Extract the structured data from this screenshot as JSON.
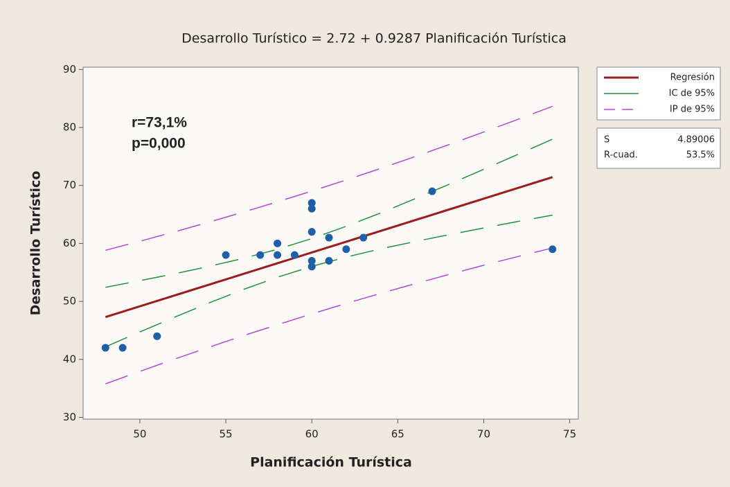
{
  "chart_data": {
    "type": "scatter",
    "title": "Desarrollo Turístico = 2.72 + 0.9287 Planificación Turística",
    "xlabel": "Planificación Turística",
    "ylabel": "Desarrollo Turístico",
    "annotations": [
      "r=73,1%",
      "p=0,000"
    ],
    "xlim": [
      46.7,
      75.5
    ],
    "ylim": [
      29.7,
      90.4
    ],
    "xticks": [
      50,
      55,
      60,
      65,
      70,
      75
    ],
    "yticks": [
      30,
      40,
      50,
      60,
      70,
      80,
      90
    ],
    "grid": false,
    "legend": "right",
    "points": {
      "color": "#1f5fa8",
      "x": [
        48,
        49,
        51,
        55,
        57,
        58,
        58,
        59,
        60,
        60,
        60,
        60,
        60,
        61,
        61,
        62,
        63,
        67,
        74
      ],
      "values": [
        42,
        42,
        44,
        58,
        58,
        60,
        58,
        58,
        67,
        66,
        62,
        57,
        56,
        61,
        57,
        59,
        61,
        69,
        59
      ]
    },
    "series": [
      {
        "name": "Regresión",
        "color": "#9e1b1b",
        "linestyle": "solid",
        "x": [
          48,
          74
        ],
        "values": [
          47.3,
          71.44
        ]
      },
      {
        "name": "IC de 95%",
        "color": "#23903a",
        "linestyle": "dashed",
        "x": [
          48,
          50,
          52,
          54,
          56,
          58,
          60,
          62,
          64,
          66,
          68,
          70,
          72,
          74
        ],
        "upper": [
          52.43,
          53.58,
          54.76,
          56.03,
          57.42,
          58.99,
          60.84,
          62.95,
          65.26,
          67.7,
          70.22,
          72.79,
          75.38,
          77.99
        ],
        "lower": [
          42.17,
          44.74,
          47.26,
          49.71,
          52.04,
          54.17,
          56.04,
          57.65,
          59.06,
          60.32,
          61.52,
          62.67,
          63.8,
          64.89
        ]
      },
      {
        "name": "IP de 95%",
        "color": "#b447d6",
        "linestyle": "dashed",
        "x": [
          48,
          50,
          52,
          54,
          56,
          58,
          60,
          62,
          64,
          66,
          68,
          70,
          72,
          74
        ],
        "upper": [
          58.82,
          60.38,
          61.99,
          63.66,
          65.39,
          67.18,
          69.03,
          70.95,
          72.93,
          74.97,
          77.07,
          79.22,
          81.42,
          83.66
        ],
        "lower": [
          35.78,
          37.94,
          40.03,
          42.08,
          44.07,
          45.98,
          47.85,
          49.65,
          51.39,
          53.05,
          54.67,
          56.24,
          57.76,
          59.22
        ]
      }
    ],
    "stats": [
      {
        "label": "S",
        "value": 4.89006
      },
      {
        "label": "R-cuad.",
        "value": 53.5,
        "value_label": "53.5%"
      }
    ]
  }
}
